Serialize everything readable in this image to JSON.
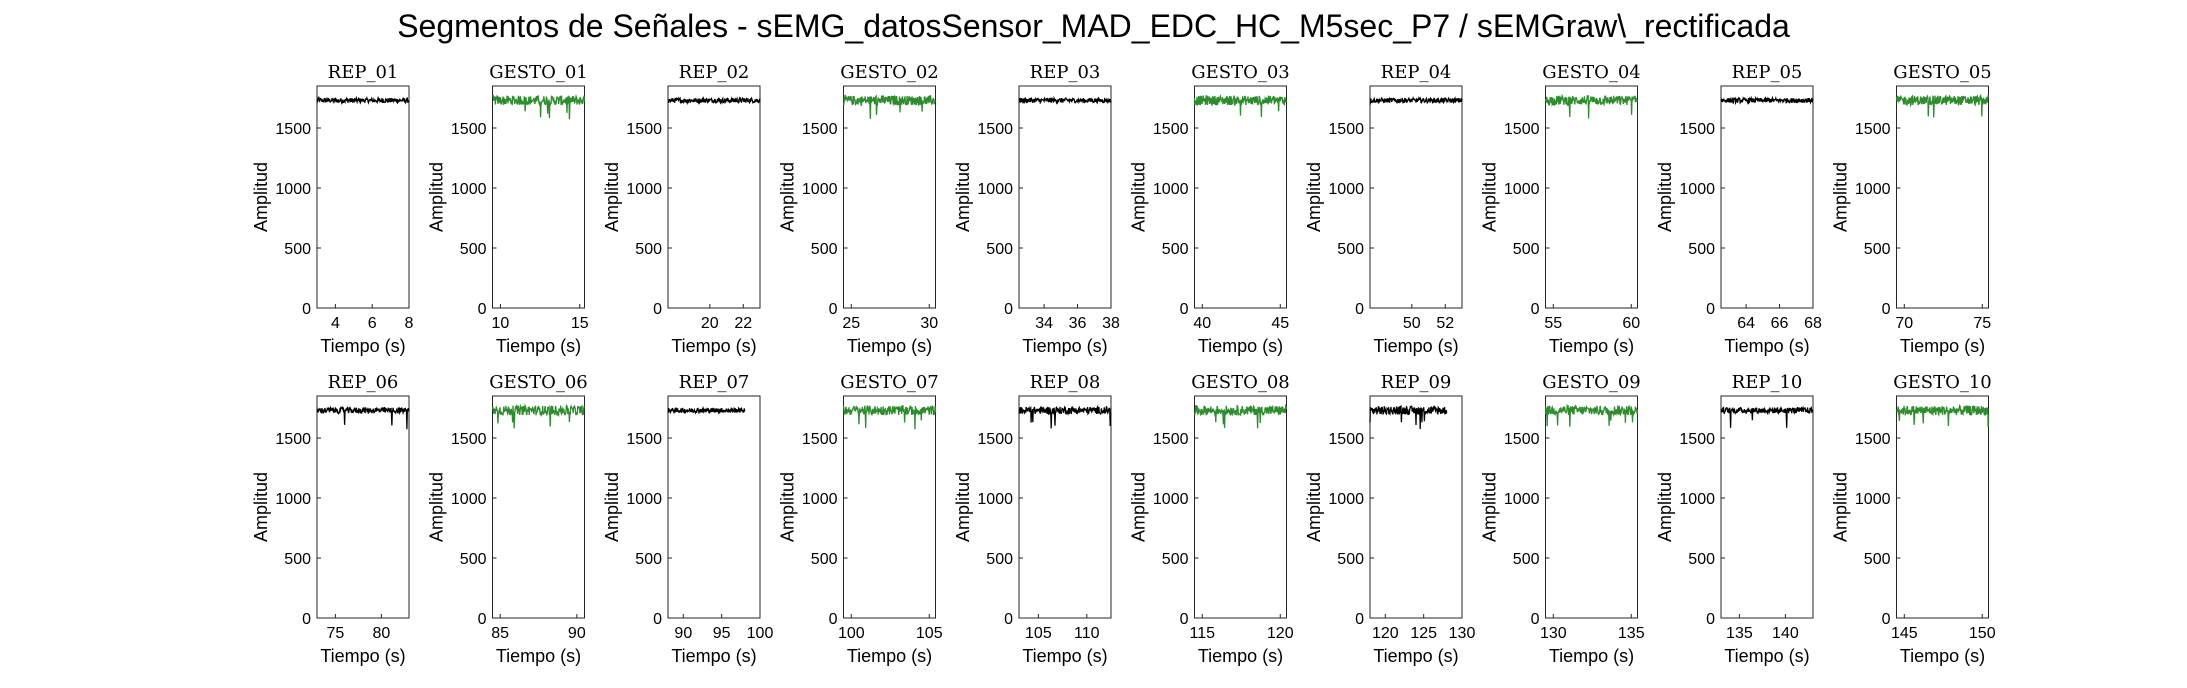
{
  "title": "Segmentos de Señales - sEMG_datosSensor_MAD_EDC_HC_M5sec_P7 / sEMGraw\\_rectificada",
  "colors": {
    "rep": "#000000",
    "gesto": "#2e8b2e",
    "axes": "#262626"
  },
  "chart_data": [
    {
      "type": "line",
      "title": "REP_01",
      "xlabel": "Tiempo (s)",
      "ylabel": "Amplitud",
      "xlim": [
        3,
        8
      ],
      "ylim": [
        0,
        1850
      ],
      "xticks": [
        4,
        6,
        8
      ],
      "yticks": [
        0,
        500,
        1000,
        1500
      ],
      "series": [
        {
          "x": [
            3,
            8
          ],
          "y": [
            1730,
            1730
          ],
          "color": "black",
          "noise": 20
        }
      ]
    },
    {
      "type": "line",
      "title": "GESTO_01",
      "xlabel": "Tiempo (s)",
      "ylabel": "Amplitud",
      "xlim": [
        9.5,
        15.3
      ],
      "ylim": [
        0,
        1850
      ],
      "xticks": [
        10,
        15
      ],
      "yticks": [
        0,
        500,
        1000,
        1500
      ],
      "series": [
        {
          "x": [
            9.5,
            15.3
          ],
          "y": [
            1730,
            1730
          ],
          "color": "green",
          "noise": 40
        }
      ]
    },
    {
      "type": "line",
      "title": "REP_02",
      "xlabel": "Tiempo (s)",
      "ylabel": "Amplitud",
      "xlim": [
        17.5,
        23
      ],
      "ylim": [
        0,
        1850
      ],
      "xticks": [
        20,
        22
      ],
      "yticks": [
        0,
        500,
        1000,
        1500
      ],
      "series": [
        {
          "x": [
            17.5,
            23
          ],
          "y": [
            1730,
            1730
          ],
          "color": "black",
          "noise": 20
        }
      ]
    },
    {
      "type": "line",
      "title": "GESTO_02",
      "xlabel": "Tiempo (s)",
      "ylabel": "Amplitud",
      "xlim": [
        24.5,
        30.4
      ],
      "ylim": [
        0,
        1850
      ],
      "xticks": [
        25,
        30
      ],
      "yticks": [
        0,
        500,
        1000,
        1500
      ],
      "series": [
        {
          "x": [
            24.5,
            30.4
          ],
          "y": [
            1730,
            1730
          ],
          "color": "green",
          "noise": 40
        }
      ]
    },
    {
      "type": "line",
      "title": "REP_03",
      "xlabel": "Tiempo (s)",
      "ylabel": "Amplitud",
      "xlim": [
        32.5,
        38
      ],
      "ylim": [
        0,
        1850
      ],
      "xticks": [
        34,
        36,
        38
      ],
      "yticks": [
        0,
        500,
        1000,
        1500
      ],
      "series": [
        {
          "x": [
            32.5,
            38
          ],
          "y": [
            1730,
            1730
          ],
          "color": "black",
          "noise": 20
        }
      ]
    },
    {
      "type": "line",
      "title": "GESTO_03",
      "xlabel": "Tiempo (s)",
      "ylabel": "Amplitud",
      "xlim": [
        39.5,
        45.4
      ],
      "ylim": [
        0,
        1850
      ],
      "xticks": [
        40,
        45
      ],
      "yticks": [
        0,
        500,
        1000,
        1500
      ],
      "series": [
        {
          "x": [
            39.5,
            45.4
          ],
          "y": [
            1730,
            1730
          ],
          "color": "green",
          "noise": 40
        }
      ]
    },
    {
      "type": "line",
      "title": "REP_04",
      "xlabel": "Tiempo (s)",
      "ylabel": "Amplitud",
      "xlim": [
        47.5,
        53
      ],
      "ylim": [
        0,
        1850
      ],
      "xticks": [
        50,
        52
      ],
      "yticks": [
        0,
        500,
        1000,
        1500
      ],
      "series": [
        {
          "x": [
            47.5,
            53
          ],
          "y": [
            1730,
            1730
          ],
          "color": "black",
          "noise": 20
        }
      ]
    },
    {
      "type": "line",
      "title": "GESTO_04",
      "xlabel": "Tiempo (s)",
      "ylabel": "Amplitud",
      "xlim": [
        54.5,
        60.4
      ],
      "ylim": [
        0,
        1850
      ],
      "xticks": [
        55,
        60
      ],
      "yticks": [
        0,
        500,
        1000,
        1500
      ],
      "series": [
        {
          "x": [
            54.5,
            60.4
          ],
          "y": [
            1730,
            1730
          ],
          "color": "green",
          "noise": 40
        }
      ]
    },
    {
      "type": "line",
      "title": "REP_05",
      "xlabel": "Tiempo (s)",
      "ylabel": "Amplitud",
      "xlim": [
        62.5,
        68
      ],
      "ylim": [
        0,
        1850
      ],
      "xticks": [
        64,
        66,
        68
      ],
      "yticks": [
        0,
        500,
        1000,
        1500
      ],
      "series": [
        {
          "x": [
            62.5,
            68
          ],
          "y": [
            1730,
            1730
          ],
          "color": "black",
          "noise": 20
        }
      ]
    },
    {
      "type": "line",
      "title": "GESTO_05",
      "xlabel": "Tiempo (s)",
      "ylabel": "Amplitud",
      "xlim": [
        69.5,
        75.4
      ],
      "ylim": [
        0,
        1850
      ],
      "xticks": [
        70,
        75
      ],
      "yticks": [
        0,
        500,
        1000,
        1500
      ],
      "series": [
        {
          "x": [
            69.5,
            75.4
          ],
          "y": [
            1730,
            1730
          ],
          "color": "green",
          "noise": 40
        }
      ]
    },
    {
      "type": "line",
      "title": "REP_06",
      "xlabel": "Tiempo (s)",
      "ylabel": "Amplitud",
      "xlim": [
        73,
        83
      ],
      "ylim": [
        0,
        1850
      ],
      "xticks": [
        75,
        80
      ],
      "yticks": [
        0,
        500,
        1000,
        1500
      ],
      "series": [
        {
          "x": [
            73,
            83
          ],
          "y": [
            1730,
            1730
          ],
          "color": "black",
          "noise": 25
        }
      ]
    },
    {
      "type": "line",
      "title": "GESTO_06",
      "xlabel": "Tiempo (s)",
      "ylabel": "Amplitud",
      "xlim": [
        84.5,
        90.5
      ],
      "ylim": [
        0,
        1850
      ],
      "xticks": [
        85,
        90
      ],
      "yticks": [
        0,
        500,
        1000,
        1500
      ],
      "series": [
        {
          "x": [
            84.5,
            90.5
          ],
          "y": [
            1730,
            1730
          ],
          "color": "green",
          "noise": 40
        }
      ]
    },
    {
      "type": "line",
      "title": "REP_07",
      "xlabel": "Tiempo (s)",
      "ylabel": "Amplitud",
      "xlim": [
        88,
        100
      ],
      "ylim": [
        0,
        1850
      ],
      "xticks": [
        90,
        95,
        100
      ],
      "yticks": [
        0,
        500,
        1000,
        1500
      ],
      "series": [
        {
          "x": [
            88,
            98
          ],
          "y": [
            1730,
            1730
          ],
          "color": "black",
          "noise": 20
        }
      ]
    },
    {
      "type": "line",
      "title": "GESTO_07",
      "xlabel": "Tiempo (s)",
      "ylabel": "Amplitud",
      "xlim": [
        99.5,
        105.4
      ],
      "ylim": [
        0,
        1850
      ],
      "xticks": [
        100,
        105
      ],
      "yticks": [
        0,
        500,
        1000,
        1500
      ],
      "series": [
        {
          "x": [
            99.5,
            105.4
          ],
          "y": [
            1730,
            1730
          ],
          "color": "green",
          "noise": 40
        }
      ]
    },
    {
      "type": "line",
      "title": "REP_08",
      "xlabel": "Tiempo (s)",
      "ylabel": "Amplitud",
      "xlim": [
        103,
        112.5
      ],
      "ylim": [
        0,
        1850
      ],
      "xticks": [
        105,
        110
      ],
      "yticks": [
        0,
        500,
        1000,
        1500
      ],
      "series": [
        {
          "x": [
            103,
            112.5
          ],
          "y": [
            1730,
            1730
          ],
          "color": "black",
          "noise": 30
        }
      ]
    },
    {
      "type": "line",
      "title": "GESTO_08",
      "xlabel": "Tiempo (s)",
      "ylabel": "Amplitud",
      "xlim": [
        114.5,
        120.4
      ],
      "ylim": [
        0,
        1850
      ],
      "xticks": [
        115,
        120
      ],
      "yticks": [
        0,
        500,
        1000,
        1500
      ],
      "series": [
        {
          "x": [
            114.5,
            120.4
          ],
          "y": [
            1730,
            1730
          ],
          "color": "green",
          "noise": 40
        }
      ]
    },
    {
      "type": "line",
      "title": "REP_09",
      "xlabel": "Tiempo (s)",
      "ylabel": "Amplitud",
      "xlim": [
        118,
        130
      ],
      "ylim": [
        0,
        1850
      ],
      "xticks": [
        120,
        125,
        130
      ],
      "yticks": [
        0,
        500,
        1000,
        1500
      ],
      "series": [
        {
          "x": [
            118,
            128
          ],
          "y": [
            1730,
            1730
          ],
          "color": "black",
          "noise": 35
        }
      ]
    },
    {
      "type": "line",
      "title": "GESTO_09",
      "xlabel": "Tiempo (s)",
      "ylabel": "Amplitud",
      "xlim": [
        129.5,
        135.4
      ],
      "ylim": [
        0,
        1850
      ],
      "xticks": [
        130,
        135
      ],
      "yticks": [
        0,
        500,
        1000,
        1500
      ],
      "series": [
        {
          "x": [
            129.5,
            135.4
          ],
          "y": [
            1730,
            1730
          ],
          "color": "green",
          "noise": 40
        }
      ]
    },
    {
      "type": "line",
      "title": "REP_10",
      "xlabel": "Tiempo (s)",
      "ylabel": "Amplitud",
      "xlim": [
        133,
        143
      ],
      "ylim": [
        0,
        1850
      ],
      "xticks": [
        135,
        140
      ],
      "yticks": [
        0,
        500,
        1000,
        1500
      ],
      "series": [
        {
          "x": [
            133,
            143
          ],
          "y": [
            1730,
            1730
          ],
          "color": "black",
          "noise": 25
        }
      ]
    },
    {
      "type": "line",
      "title": "GESTO_10",
      "xlabel": "Tiempo (s)",
      "ylabel": "Amplitud",
      "xlim": [
        144.5,
        150.4
      ],
      "ylim": [
        0,
        1850
      ],
      "xticks": [
        145,
        150
      ],
      "yticks": [
        0,
        500,
        1000,
        1500
      ],
      "series": [
        {
          "x": [
            144.5,
            150.4
          ],
          "y": [
            1730,
            1730
          ],
          "color": "green",
          "noise": 40
        }
      ]
    }
  ]
}
